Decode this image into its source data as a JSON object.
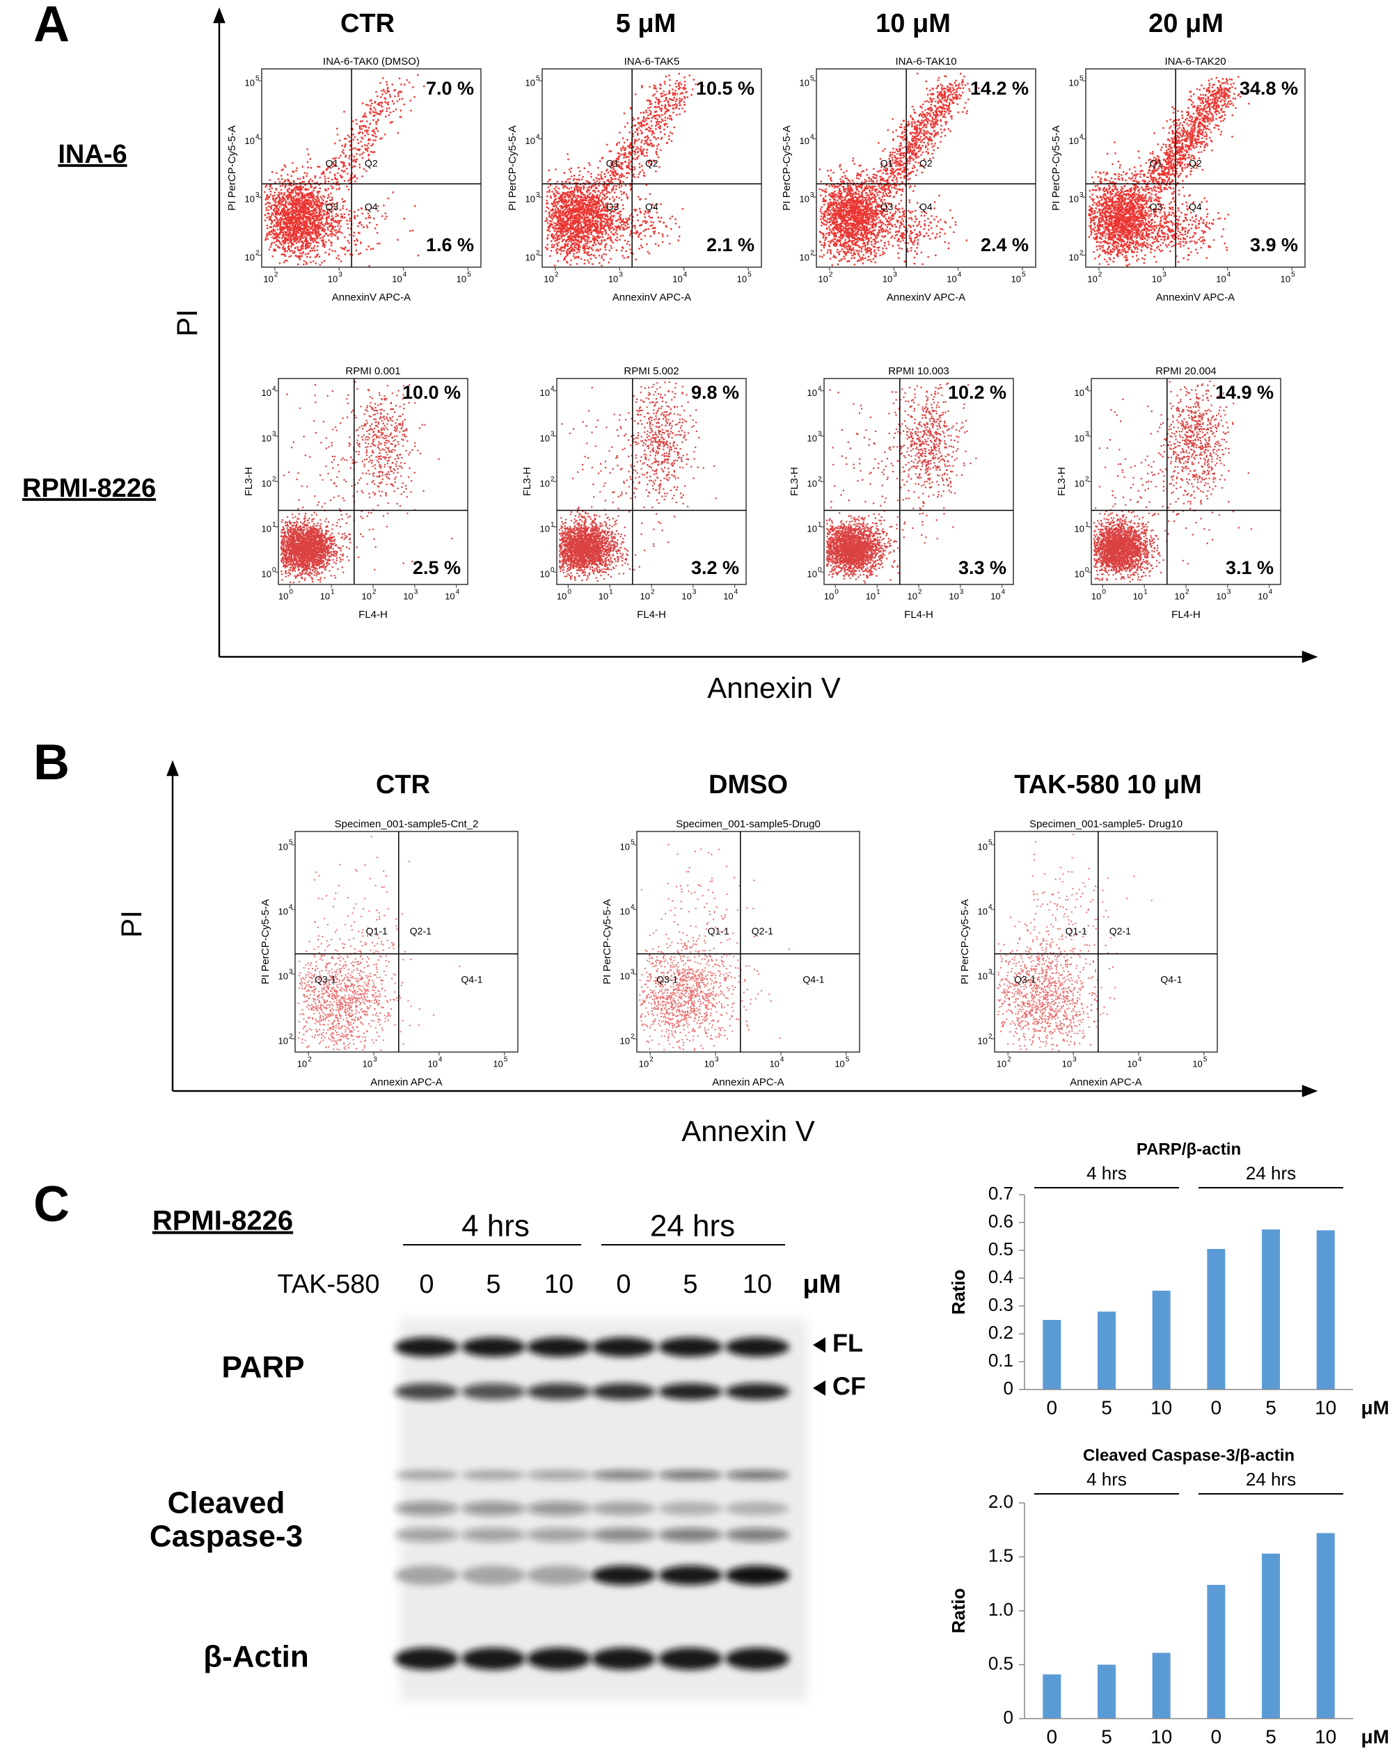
{
  "panel_a": {
    "label": "A",
    "columns": [
      "CTR",
      "5 μM",
      "10 μM",
      "20 μM"
    ],
    "y_label": "PI",
    "x_label": "Annexin V",
    "rows": [
      {
        "label": "INA-6",
        "x_axis": "AnnexinV APC-A",
        "y_axis": "PI PerCP-Cy5-5-A",
        "quadrants": [
          "Q1",
          "Q2",
          "Q3",
          "Q4"
        ],
        "tick_base": "10",
        "ticks": [
          2,
          3,
          4,
          5
        ],
        "plots": [
          {
            "title": "INA-6-TAK0 (DMSO)",
            "upper": "7.0 %",
            "lower": "1.6 %"
          },
          {
            "title": "INA-6-TAK5",
            "upper": "10.5 %",
            "lower": "2.1 %"
          },
          {
            "title": "INA-6-TAK10",
            "upper": "14.2 %",
            "lower": "2.4 %"
          },
          {
            "title": "INA-6-TAK20",
            "upper": "34.8 %",
            "lower": "3.9 %"
          }
        ]
      },
      {
        "label": "RPMI-8226",
        "x_axis": "FL4-H",
        "y_axis": "FL3-H",
        "tick_base": "10",
        "ticks": [
          0,
          1,
          2,
          3,
          4
        ],
        "plots": [
          {
            "title": "RPMI 0.001",
            "upper": "10.0 %",
            "lower": "2.5 %"
          },
          {
            "title": "RPMI 5.002",
            "upper": "9.8 %",
            "lower": "3.2 %"
          },
          {
            "title": "RPMI 10.003",
            "upper": "10.2 %",
            "lower": "3.3 %"
          },
          {
            "title": "RPMI 20.004",
            "upper": "14.9 %",
            "lower": "3.1 %"
          }
        ]
      }
    ]
  },
  "panel_b": {
    "label": "B",
    "y_label": "PI",
    "x_label": "Annexin V",
    "x_axis": "Annexin APC-A",
    "y_axis": "PI PerCP-Cy5-5-A",
    "quadrants": [
      "Q1-1",
      "Q2-1",
      "Q3-1",
      "Q4-1"
    ],
    "tick_base": "10",
    "ticks": [
      2,
      3,
      4,
      5
    ],
    "plots": [
      {
        "header": "CTR",
        "title": "Specimen_001-sample5-Cnt_2"
      },
      {
        "header": "DMSO",
        "title": "Specimen_001-sample5-Drug0"
      },
      {
        "header": "TAK-580 10 μM",
        "title": "Specimen_001-sample5- Drug10"
      }
    ]
  },
  "panel_c": {
    "label": "C",
    "cell_line": "RPMI-8226",
    "treatment": "TAK-580",
    "unit": "μM",
    "times": [
      "4 hrs",
      "24 hrs"
    ],
    "doses": [
      "0",
      "5",
      "10",
      "0",
      "5",
      "10"
    ],
    "proteins": {
      "parp": "PARP",
      "caspase": [
        "Cleaved",
        "Caspase-3"
      ],
      "actin": "β-Actin"
    },
    "bands": [
      "FL",
      "CF"
    ]
  },
  "chart_data": [
    {
      "type": "bar",
      "title": "PARP/β-actin",
      "y_label": "Ratio",
      "groups": [
        "4 hrs",
        "24 hrs"
      ],
      "x_unit": "μM",
      "categories": [
        "0",
        "5",
        "10",
        "0",
        "5",
        "10"
      ],
      "values": [
        0.25,
        0.28,
        0.355,
        0.505,
        0.575,
        0.572
      ],
      "color": "#5b9bd5",
      "ylim": [
        0,
        0.7
      ],
      "yticks": [
        0,
        0.1,
        0.2,
        0.3,
        0.4,
        0.5,
        0.6,
        0.7
      ]
    },
    {
      "type": "bar",
      "title": "Cleaved Caspase-3/β-actin",
      "y_label": "Ratio",
      "groups": [
        "4 hrs",
        "24 hrs"
      ],
      "x_unit": "μM",
      "categories": [
        "0",
        "5",
        "10",
        "0",
        "5",
        "10"
      ],
      "values": [
        0.41,
        0.5,
        0.61,
        1.24,
        1.53,
        1.72
      ],
      "color": "#5b9bd5",
      "ylim": [
        0,
        2
      ],
      "yticks": [
        0,
        0.5,
        {
          "value": 1,
          "label": "1.0"
        },
        1.5,
        {
          "value": 2,
          "label": "2.0"
        }
      ]
    }
  ]
}
